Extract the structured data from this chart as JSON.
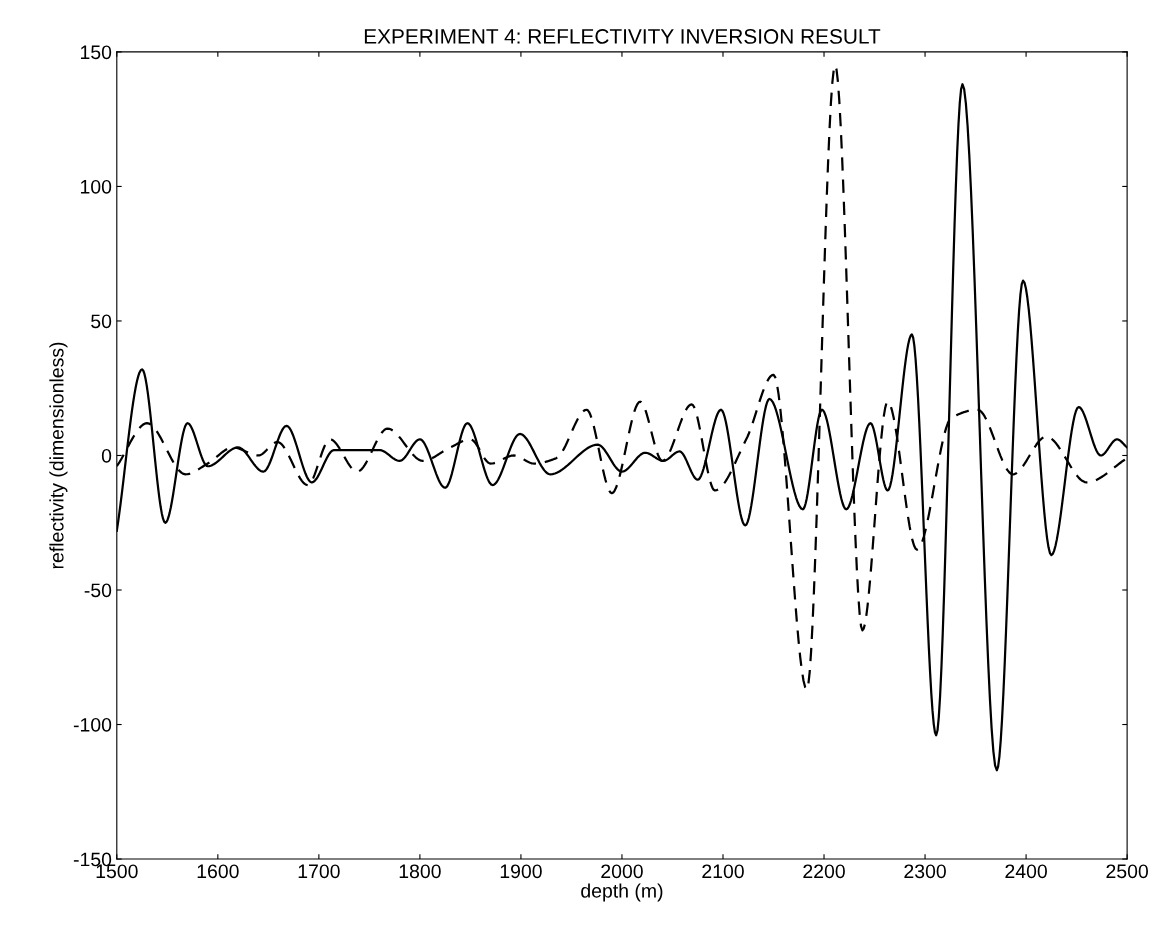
{
  "chart_data": {
    "type": "line",
    "title": "EXPERIMENT 4: REFLECTIVITY INVERSION RESULT",
    "xlabel": "depth (m)",
    "ylabel": "reflectivity (dimensionless)",
    "xlim": [
      1500,
      2500
    ],
    "ylim": [
      -150,
      150
    ],
    "xticks": [
      1500,
      1600,
      1700,
      1800,
      1900,
      2000,
      2100,
      2200,
      2300,
      2400,
      2500
    ],
    "yticks": [
      -150,
      -100,
      -50,
      0,
      50,
      100,
      150
    ],
    "grid": false,
    "series": [
      {
        "color": "#000000",
        "line_style": "solid",
        "x": [
          1500,
          1525,
          1548,
          1570,
          1590,
          1620,
          1645,
          1668,
          1693,
          1715,
          1760,
          1780,
          1800,
          1825,
          1847,
          1872,
          1899,
          1929,
          1976,
          2000,
          2023,
          2041,
          2057,
          2075,
          2098,
          2122,
          2146,
          2179,
          2198,
          2222,
          2246,
          2263,
          2287,
          2311,
          2337,
          2371,
          2397,
          2425,
          2452,
          2474,
          2490,
          2500
        ],
        "values": [
          -28,
          32,
          -25,
          12,
          -4,
          3,
          -6,
          11,
          -10,
          2,
          2,
          -2,
          6,
          -12,
          12,
          -11,
          8,
          -7,
          4,
          -6,
          1,
          -2,
          1.5,
          -9,
          17,
          -26,
          21,
          -20,
          17,
          -20,
          12,
          -13,
          45,
          -104,
          138,
          -117,
          65,
          -37,
          18,
          0,
          6,
          3
        ]
      },
      {
        "color": "#000000",
        "line_style": "dashed",
        "x": [
          1500,
          1530,
          1568,
          1590,
          1615,
          1640,
          1659,
          1689,
          1711,
          1738,
          1768,
          1803,
          1830,
          1850,
          1870,
          1893,
          1913,
          1935,
          1965,
          1990,
          2018,
          2040,
          2069,
          2092,
          2123,
          2150,
          2183,
          2211,
          2238,
          2263,
          2292,
          2326,
          2352,
          2387,
          2420,
          2460,
          2500
        ],
        "values": [
          -4,
          12,
          -7,
          -3,
          3,
          0,
          5,
          -11,
          6,
          -6,
          10,
          -2,
          3,
          6,
          -3,
          0,
          -3,
          -1,
          17,
          -14,
          20,
          -2,
          19,
          -13,
          6,
          30,
          -87,
          145,
          -65,
          20,
          -35,
          14,
          17,
          -7,
          7,
          -10,
          -1
        ]
      }
    ]
  }
}
